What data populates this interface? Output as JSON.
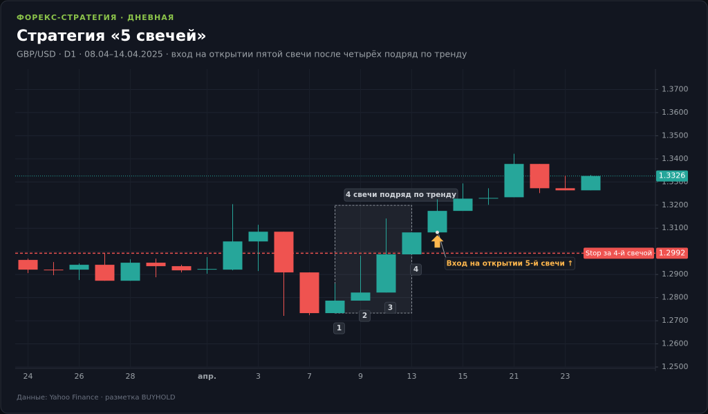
{
  "chart_data": {
    "type": "candlestick",
    "kicker": "ФОРЕКС-СТРАТЕГИЯ · ДНЕВНАЯ",
    "title": "Стратегия «5 свечей»",
    "subtitle": "GBP/USD · D1 · 08.04–14.04.2025 · вход на открытии пятой свечи после четырёх подряд по тренду",
    "source": "Данные: Yahoo Finance · разметка BUYHOLD",
    "categories": [
      "24",
      null,
      "26",
      null,
      "28",
      null,
      null,
      "апр.",
      null,
      "3",
      null,
      "7",
      null,
      "9",
      null,
      "13",
      null,
      "15",
      null,
      "21",
      null,
      "23",
      null
    ],
    "open": [
      1.2963,
      1.2921,
      1.2921,
      1.2942,
      1.2873,
      1.2951,
      1.2936,
      1.2921,
      1.2921,
      1.3043,
      1.3085,
      1.2909,
      1.2733,
      1.2787,
      1.2822,
      1.2987,
      1.3082,
      1.3175,
      1.3228,
      1.3234,
      1.3378,
      1.3273,
      1.3264
    ],
    "high": [
      1.2969,
      1.2954,
      1.2948,
      1.299,
      1.2966,
      1.2969,
      1.2942,
      1.2975,
      1.3204,
      1.3115,
      1.3085,
      1.2909,
      1.2861,
      1.2981,
      1.3142,
      1.3082,
      1.3225,
      1.3294,
      1.3273,
      1.3422,
      1.3378,
      1.3327,
      1.333
    ],
    "low": [
      1.2906,
      1.2897,
      1.2876,
      1.2873,
      1.2873,
      1.2888,
      1.2909,
      1.2903,
      1.2918,
      1.2915,
      1.2721,
      1.2724,
      1.2733,
      1.2787,
      1.2822,
      1.2987,
      1.3082,
      1.3175,
      1.3201,
      1.3234,
      1.3252,
      1.3264,
      1.3264
    ],
    "close": [
      1.2921,
      1.2918,
      1.2942,
      1.2873,
      1.2951,
      1.2936,
      1.2918,
      1.2924,
      1.3043,
      1.3085,
      1.2909,
      1.2733,
      1.2787,
      1.2822,
      1.2987,
      1.3082,
      1.3175,
      1.3228,
      1.3231,
      1.3378,
      1.3273,
      1.3264,
      1.3326
    ],
    "up_color": "#26a69a",
    "down_color": "#ef5350",
    "ylim": [
      1.25,
      1.38
    ],
    "yticks": [
      {
        "value": 1.25,
        "label": "1.2500"
      },
      {
        "value": 1.26,
        "label": "1.2600"
      },
      {
        "value": 1.27,
        "label": "1.2700"
      },
      {
        "value": 1.28,
        "label": "1.2800"
      },
      {
        "value": 1.29,
        "label": "1.2900"
      },
      {
        "value": 1.3,
        "label": "1.3000"
      },
      {
        "value": 1.31,
        "label": "1.3100"
      },
      {
        "value": 1.32,
        "label": "1.3200"
      },
      {
        "value": 1.33,
        "label": "1.3300"
      },
      {
        "value": 1.34,
        "label": "1.3400"
      },
      {
        "value": 1.35,
        "label": "1.3500"
      },
      {
        "value": 1.36,
        "label": "1.3600"
      },
      {
        "value": 1.37,
        "label": "1.3700"
      }
    ],
    "grid": true,
    "lines": [
      {
        "value": 1.2992,
        "label": "Stop за 4-й свечой",
        "color": "#ef5350",
        "style": "dashed"
      },
      {
        "value": 1.3326,
        "color": "#26a69a",
        "style": "dotted"
      }
    ],
    "highlight": {
      "from": 12,
      "to": 15,
      "label": "4 свечи подряд по тренду",
      "numbers": [
        "1",
        "2",
        "3",
        "4"
      ]
    },
    "entry": {
      "index": 16,
      "label": "Вход на открытии 5-й свечи ↑",
      "color": "#ffb74d"
    }
  }
}
